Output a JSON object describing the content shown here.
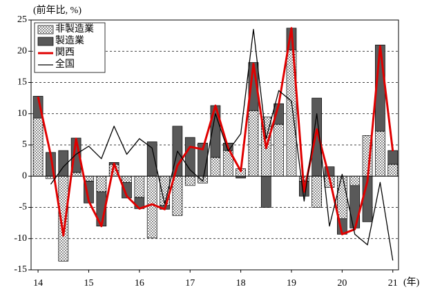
{
  "chart_data": {
    "type": "bar",
    "stacked": true,
    "y_label": "(前年比, %)",
    "x_label": "(年)",
    "categories": [
      "14",
      null,
      null,
      null,
      "15",
      null,
      null,
      null,
      "16",
      null,
      null,
      null,
      "17",
      null,
      null,
      null,
      "18",
      null,
      null,
      null,
      "19",
      null,
      null,
      null,
      "20",
      null,
      null,
      null,
      "21"
    ],
    "series": [
      {
        "name": "非製造業",
        "type": "bar",
        "color": "#000000",
        "pattern": "dots",
        "values": [
          9.3,
          -0.4,
          -13.6,
          0.6,
          -0.8,
          -2.5,
          1.9,
          -1.0,
          -3.4,
          -9.9,
          -4.7,
          -6.3,
          -1.5,
          -1.1,
          3.0,
          4.1,
          1.2,
          10.5,
          9.5,
          8.3,
          20.2,
          -0.8,
          -5.0,
          -1.8,
          -6.8,
          -1.5,
          6.5,
          7.2,
          1.9
        ]
      },
      {
        "name": "製造業",
        "type": "bar",
        "color": "#595959",
        "values": [
          3.5,
          3.8,
          4.1,
          5.5,
          -3.5,
          -5.5,
          0.3,
          -2.5,
          -1.8,
          5.5,
          -0.6,
          8.0,
          6.2,
          5.3,
          8.3,
          1.2,
          -0.3,
          7.7,
          -5.0,
          3.3,
          3.5,
          -2.4,
          12.5,
          1.5,
          -2.5,
          -6.8,
          -7.3,
          13.8,
          2.2
        ]
      },
      {
        "name": "関西",
        "type": "line",
        "color": "#e00000",
        "values": [
          12.7,
          3.4,
          -9.5,
          6.0,
          -4.0,
          -8.0,
          2.0,
          -3.2,
          -5.2,
          -4.5,
          -5.3,
          1.7,
          4.7,
          4.3,
          11.3,
          4.5,
          0.8,
          18.0,
          4.5,
          11.5,
          23.7,
          -2.5,
          7.5,
          -0.3,
          -9.3,
          -8.5,
          -0.8,
          20.8,
          4.0
        ]
      },
      {
        "name": "全国",
        "type": "line",
        "color": "#000000",
        "values": [
          null,
          -1.3,
          1.5,
          3.5,
          4.8,
          2.8,
          8.0,
          3.5,
          6.0,
          4.5,
          -4.5,
          4.0,
          1.0,
          -0.8,
          10.0,
          4.0,
          6.8,
          23.5,
          6.0,
          13.7,
          12.0,
          -4.0,
          10.0,
          -8.0,
          0.3,
          -9.3,
          -11.0,
          -1.0,
          -13.5
        ]
      }
    ],
    "ylim": [
      -15,
      25
    ],
    "yticks": [
      -15,
      -10,
      -5,
      0,
      5,
      10,
      15,
      20,
      25
    ],
    "grid": true,
    "legend": "upper left"
  }
}
